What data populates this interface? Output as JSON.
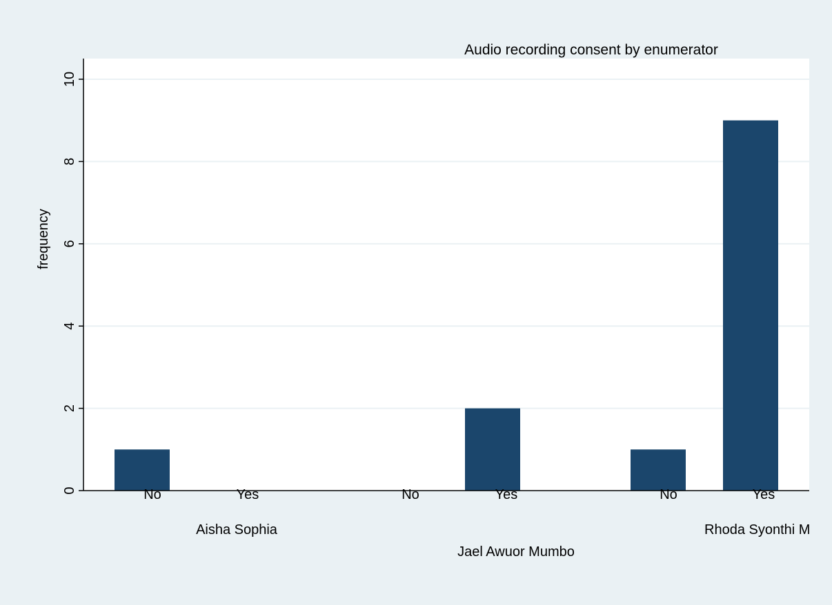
{
  "chart_data": {
    "type": "bar",
    "title": "Audio recording consent by enumerator",
    "ylabel": "frequency",
    "xlabel": "",
    "ylim": [
      0,
      10
    ],
    "yticks": [
      0,
      2,
      4,
      6,
      8,
      10
    ],
    "grid": true,
    "legend": "none",
    "colors": {
      "bar": "#1b466c",
      "plot_background": "#ffffff",
      "page_background": "#eaf1f4",
      "grid": "#eaf1f4"
    },
    "groups": [
      {
        "name": "Aisha Sophia",
        "categories": [
          "No",
          "Yes"
        ],
        "values": [
          1,
          0
        ]
      },
      {
        "name": "Jael Awuor Mumbo",
        "categories": [
          "No",
          "Yes"
        ],
        "values": [
          0,
          2
        ]
      },
      {
        "name": "Rhoda Syonthi M",
        "categories": [
          "No",
          "Yes"
        ],
        "values": [
          1,
          9
        ]
      }
    ]
  }
}
